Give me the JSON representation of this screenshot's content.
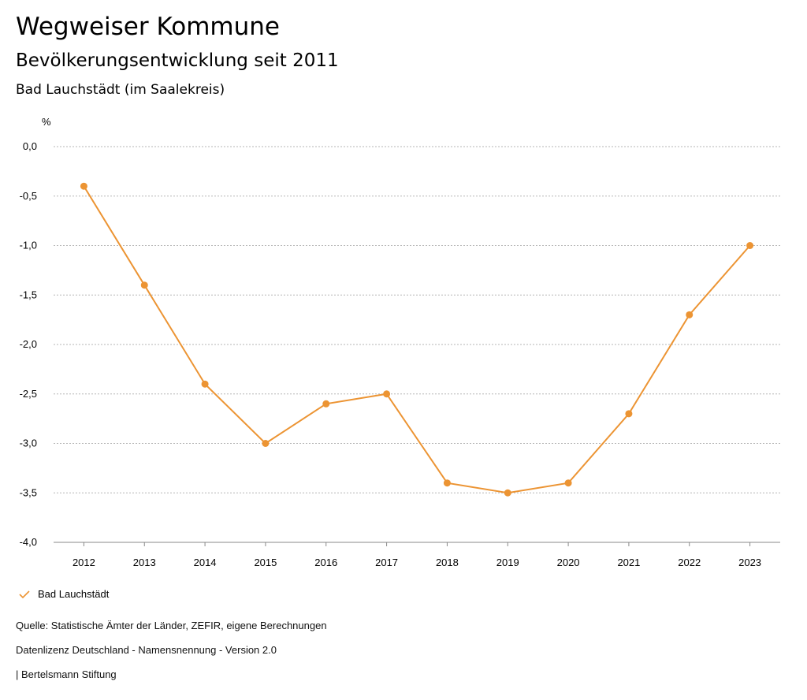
{
  "header": {
    "title": "Wegweiser Kommune",
    "subtitle": "Bevölkerungsentwicklung seit 2011",
    "region": "Bad Lauchstädt (im Saalekreis)"
  },
  "colors": {
    "series": "#ec9433",
    "grid": "#b5b5b5"
  },
  "chart_data": {
    "type": "line",
    "title": "Bevölkerungsentwicklung seit 2011",
    "ylabel": "%",
    "xlabel": "",
    "x": [
      "2012",
      "2013",
      "2014",
      "2015",
      "2016",
      "2017",
      "2018",
      "2019",
      "2020",
      "2021",
      "2022",
      "2023"
    ],
    "series": [
      {
        "name": "Bad Lauchstädt",
        "values": [
          -0.4,
          -1.4,
          -2.4,
          -3.0,
          -2.6,
          -2.5,
          -3.4,
          -3.5,
          -3.4,
          -2.7,
          -1.7,
          -1.0
        ]
      }
    ],
    "ylim": [
      -4.0,
      0.0
    ],
    "yticks": [
      0.0,
      -0.5,
      -1.0,
      -1.5,
      -2.0,
      -2.5,
      -3.0,
      -3.5,
      -4.0
    ],
    "ytick_labels": [
      "0,0",
      "-0,5",
      "-1,0",
      "-1,5",
      "-2,0",
      "-2,5",
      "-3,0",
      "-3,5",
      "-4,0"
    ],
    "grid": true,
    "legend": "bottom-left"
  },
  "legend": {
    "label": "Bad Lauchstädt"
  },
  "footer": {
    "source": "Quelle: Statistische Ämter der Länder, ZEFIR, eigene Berechnungen",
    "license": "Datenlizenz Deutschland - Namensnennung - Version 2.0",
    "publisher": "| Bertelsmann Stiftung"
  }
}
